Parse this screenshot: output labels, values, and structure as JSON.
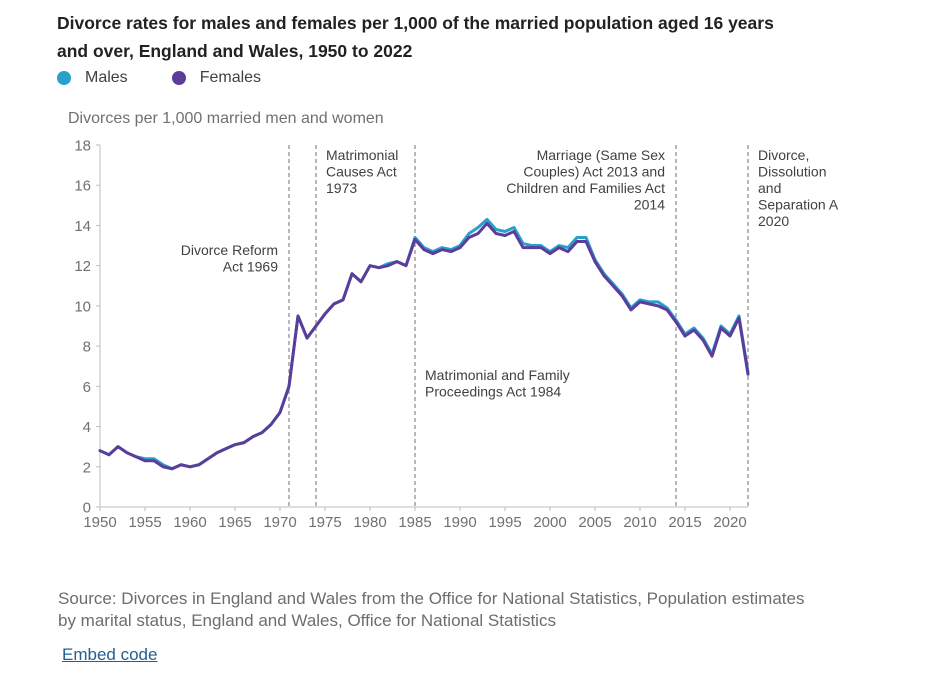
{
  "title": "Divorce rates for males and females per 1,000 of the married population aged 16 years and over, England and Wales, 1950 to 2022",
  "legend": [
    {
      "name": "Males",
      "color": "#27a0cc"
    },
    {
      "name": "Females",
      "color": "#5c3d9a"
    }
  ],
  "source": "Source: Divorces in England and Wales from the Office for National Statistics, Population estimates by marital status, England and Wales, Office for National Statistics",
  "embed_label": "Embed code",
  "chart_data": {
    "type": "line",
    "title": "Divorce rates for males and females per 1,000 of the married population aged 16 years and over, England and Wales, 1950 to 2022",
    "ylabel": "Divorces per 1,000 married men and women",
    "xlabel": "",
    "xlim": [
      1950,
      2022
    ],
    "ylim": [
      0,
      18
    ],
    "x_ticks": [
      1950,
      1955,
      1960,
      1965,
      1970,
      1975,
      1980,
      1985,
      1990,
      1995,
      2000,
      2005,
      2010,
      2015,
      2020
    ],
    "y_ticks": [
      0,
      2,
      4,
      6,
      8,
      10,
      12,
      14,
      16,
      18
    ],
    "grid": false,
    "legend_position": "top-left",
    "x": [
      1950,
      1951,
      1952,
      1953,
      1954,
      1955,
      1956,
      1957,
      1958,
      1959,
      1960,
      1961,
      1962,
      1963,
      1964,
      1965,
      1966,
      1967,
      1968,
      1969,
      1970,
      1971,
      1972,
      1973,
      1974,
      1975,
      1976,
      1977,
      1978,
      1979,
      1980,
      1981,
      1982,
      1983,
      1984,
      1985,
      1986,
      1987,
      1988,
      1989,
      1990,
      1991,
      1992,
      1993,
      1994,
      1995,
      1996,
      1997,
      1998,
      1999,
      2000,
      2001,
      2002,
      2003,
      2004,
      2005,
      2006,
      2007,
      2008,
      2009,
      2010,
      2011,
      2012,
      2013,
      2014,
      2015,
      2016,
      2017,
      2018,
      2019,
      2020,
      2021,
      2022
    ],
    "series": [
      {
        "name": "Males",
        "color": "#27a0cc",
        "values": [
          2.8,
          2.6,
          3.0,
          2.7,
          2.5,
          2.4,
          2.4,
          2.1,
          1.9,
          2.1,
          2.0,
          2.1,
          2.4,
          2.7,
          2.9,
          3.1,
          3.2,
          3.5,
          3.7,
          4.1,
          4.7,
          6.0,
          9.5,
          8.4,
          9.0,
          9.6,
          10.1,
          10.3,
          11.6,
          11.2,
          12.0,
          11.9,
          12.1,
          12.2,
          12.0,
          13.4,
          12.9,
          12.7,
          12.9,
          12.8,
          13.0,
          13.6,
          13.9,
          14.3,
          13.8,
          13.7,
          13.9,
          13.1,
          13.0,
          13.0,
          12.7,
          13.0,
          12.9,
          13.4,
          13.4,
          12.3,
          11.6,
          11.1,
          10.6,
          9.9,
          10.3,
          10.2,
          10.2,
          9.9,
          9.3,
          8.6,
          8.9,
          8.4,
          7.6,
          9.0,
          8.6,
          9.5,
          6.7
        ]
      },
      {
        "name": "Females",
        "color": "#5c3d9a",
        "values": [
          2.8,
          2.6,
          3.0,
          2.7,
          2.5,
          2.3,
          2.3,
          2.0,
          1.9,
          2.1,
          2.0,
          2.1,
          2.4,
          2.7,
          2.9,
          3.1,
          3.2,
          3.5,
          3.7,
          4.1,
          4.7,
          6.0,
          9.5,
          8.4,
          9.0,
          9.6,
          10.1,
          10.3,
          11.6,
          11.2,
          12.0,
          11.9,
          12.0,
          12.2,
          12.0,
          13.3,
          12.8,
          12.6,
          12.8,
          12.7,
          12.9,
          13.4,
          13.6,
          14.1,
          13.6,
          13.5,
          13.7,
          12.9,
          12.9,
          12.9,
          12.6,
          12.9,
          12.7,
          13.2,
          13.2,
          12.2,
          11.5,
          11.0,
          10.5,
          9.8,
          10.2,
          10.1,
          10.0,
          9.8,
          9.2,
          8.5,
          8.8,
          8.3,
          7.5,
          8.9,
          8.5,
          9.4,
          6.6
        ]
      }
    ],
    "annotations": [
      {
        "year": 1971,
        "lines": [
          "Divorce Reform",
          "Act 1969"
        ],
        "align": "right"
      },
      {
        "year": 1974,
        "lines": [
          "Matrimonial",
          "Causes Act",
          "1973"
        ],
        "align": "left"
      },
      {
        "year": 1985,
        "lines": [
          "Matrimonial and Family",
          "Proceedings Act 1984"
        ],
        "align": "left"
      },
      {
        "year": 2014,
        "lines": [
          "Marriage (Same Sex",
          "Couples) Act 2013 and",
          "Children and Families Act",
          "2014"
        ],
        "align": "right"
      },
      {
        "year": 2022,
        "lines": [
          "Divorce,",
          "Dissolution",
          "and",
          "Separation A",
          "2020"
        ],
        "align": "left"
      }
    ]
  }
}
